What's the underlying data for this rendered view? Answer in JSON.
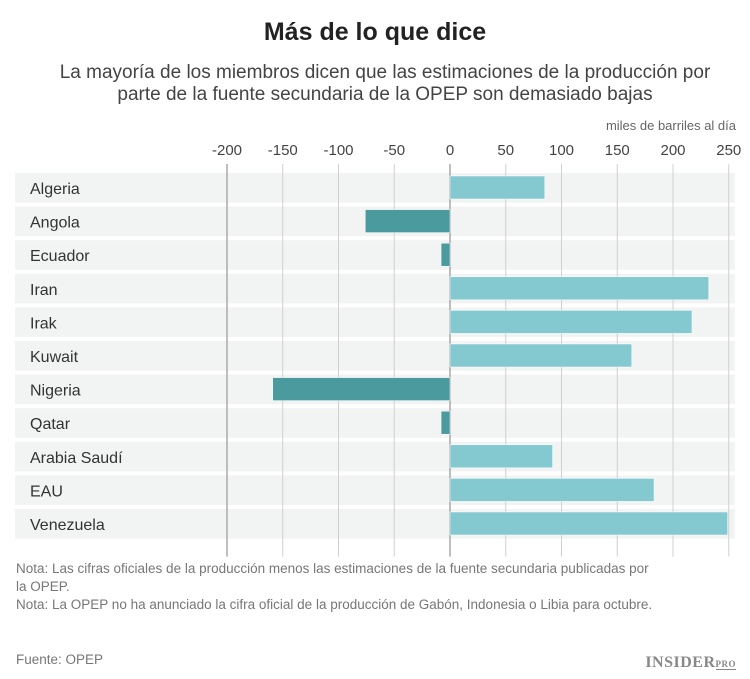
{
  "title": "Más de lo que dice",
  "subtitle": "La mayoría de los miembros dicen que las estimaciones de la producción por parte de la fuente secundaria de la OPEP son demasiado bajas",
  "chart_data": {
    "type": "bar",
    "orientation": "horizontal",
    "unit_label": "miles de barriles al día",
    "categories": [
      "Algeria",
      "Angola",
      "Ecuador",
      "Iran",
      "Irak",
      "Kuwait",
      "Nigeria",
      "Qatar",
      "Arabia Saudí",
      "EAU",
      "Venezuela"
    ],
    "values": [
      85,
      -76,
      -8,
      232,
      217,
      163,
      -159,
      -8,
      92,
      183,
      249
    ],
    "xlim": [
      -200,
      250
    ],
    "ticks": [
      -200,
      -150,
      -100,
      -50,
      0,
      50,
      100,
      150,
      200,
      250
    ],
    "grid": true,
    "colors": {
      "positive": "#84c8d0",
      "negative": "#4a9a9e"
    }
  },
  "notes": [
    "Nota: Las cifras oficiales de la producción menos las estimaciones de la fuente secundaria publicadas por la OPEP.",
    "Nota: La OPEP no ha anunciado la cifra oficial de la producción de Gabón, Indonesia o Libia para octubre."
  ],
  "source": "Fuente: OPEP",
  "logo": {
    "main": "INSIDER",
    "sup": "PRO"
  }
}
